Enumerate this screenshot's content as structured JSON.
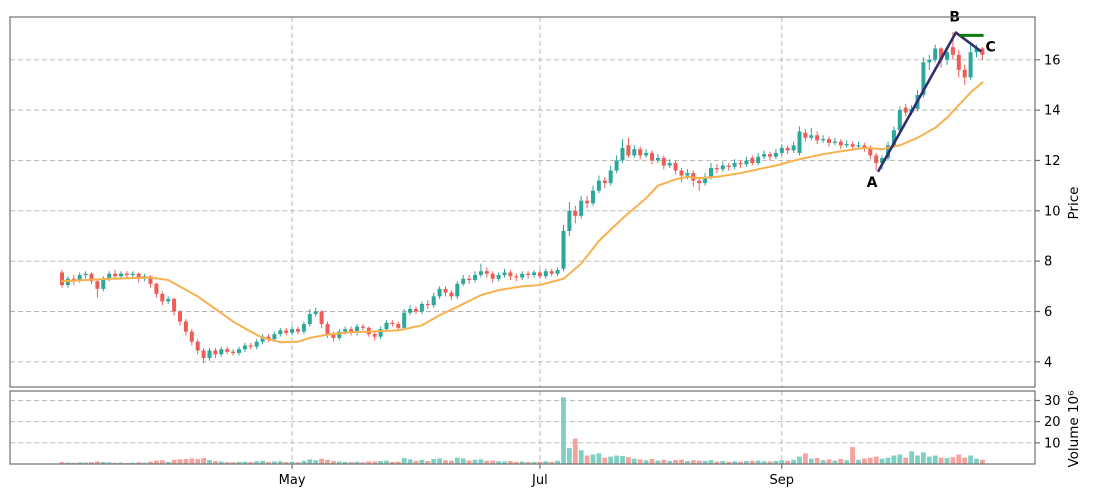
{
  "figure": {
    "kind": "candlestick-with-volume",
    "background": "#ffffff"
  },
  "chart_data": {
    "type": "candlestick",
    "title": "",
    "x_ticks": [
      {
        "index": 39,
        "label": "May"
      },
      {
        "index": 81,
        "label": "Jul"
      },
      {
        "index": 122,
        "label": "Sep"
      }
    ],
    "price": {
      "ylabel": "Price",
      "ylim": [
        3.0,
        17.7
      ],
      "yticks": [
        4,
        6,
        8,
        10,
        12,
        14,
        16
      ],
      "grid": true
    },
    "volume": {
      "ylabel_display": "Volume  10⁶",
      "unit": 1000000,
      "ylim": [
        0,
        34.5
      ],
      "yticks": [
        10,
        20,
        30
      ],
      "grid": true
    },
    "ohlc": {
      "open": [
        7.55,
        7.05,
        7.3,
        7.25,
        7.45,
        7.5,
        7.2,
        6.9,
        7.3,
        7.5,
        7.4,
        7.5,
        7.45,
        7.5,
        7.3,
        7.4,
        7.1,
        6.7,
        6.4,
        6.5,
        6.0,
        5.6,
        5.2,
        4.8,
        4.45,
        4.15,
        4.45,
        4.3,
        4.5,
        4.4,
        4.35,
        4.5,
        4.65,
        4.6,
        4.8,
        5.0,
        4.9,
        5.1,
        5.25,
        5.15,
        5.3,
        5.2,
        5.5,
        5.9,
        6.0,
        5.5,
        5.1,
        4.95,
        5.2,
        5.3,
        5.15,
        5.4,
        5.35,
        5.1,
        5.0,
        5.3,
        5.55,
        5.5,
        5.35,
        5.95,
        6.1,
        6.0,
        6.3,
        6.25,
        6.6,
        6.9,
        6.75,
        6.6,
        7.1,
        7.3,
        7.25,
        7.45,
        7.6,
        7.5,
        7.3,
        7.45,
        7.55,
        7.4,
        7.35,
        7.5,
        7.45,
        7.55,
        7.4,
        7.6,
        7.5,
        7.7,
        9.2,
        10.0,
        9.8,
        10.4,
        10.3,
        10.8,
        11.2,
        11.1,
        11.6,
        12.0,
        12.6,
        12.2,
        12.45,
        12.2,
        12.3,
        12.0,
        12.1,
        11.8,
        11.9,
        11.6,
        11.4,
        11.5,
        11.2,
        11.1,
        11.35,
        11.7,
        11.65,
        11.8,
        11.75,
        11.9,
        11.85,
        12.1,
        11.9,
        12.15,
        12.25,
        12.15,
        12.3,
        12.5,
        12.4,
        12.3,
        13.1,
        12.9,
        13.0,
        12.8,
        12.85,
        12.7,
        12.75,
        12.6,
        12.65,
        12.55,
        12.6,
        12.5,
        12.2,
        11.9,
        12.1,
        12.6,
        13.2,
        14.1,
        13.9,
        14.05,
        14.6,
        15.9,
        16.0,
        16.45,
        16.0,
        16.5,
        16.2,
        15.6,
        15.3,
        16.3,
        16.45
      ],
      "high": [
        7.65,
        7.4,
        7.45,
        7.55,
        7.6,
        7.55,
        7.3,
        7.4,
        7.6,
        7.65,
        7.6,
        7.6,
        7.6,
        7.55,
        7.5,
        7.45,
        7.15,
        6.8,
        6.6,
        6.55,
        6.05,
        5.7,
        5.3,
        4.9,
        4.55,
        4.55,
        4.55,
        4.6,
        4.6,
        4.5,
        4.6,
        4.75,
        4.75,
        4.9,
        5.1,
        5.1,
        5.2,
        5.35,
        5.35,
        5.4,
        5.4,
        5.6,
        6.1,
        6.15,
        6.05,
        5.6,
        5.2,
        5.3,
        5.4,
        5.4,
        5.5,
        5.5,
        5.4,
        5.2,
        5.4,
        5.65,
        5.65,
        5.6,
        6.1,
        6.25,
        6.2,
        6.4,
        6.45,
        6.75,
        7.0,
        7.0,
        6.85,
        7.2,
        7.45,
        7.45,
        7.6,
        7.9,
        7.75,
        7.6,
        7.55,
        7.7,
        7.65,
        7.5,
        7.6,
        7.6,
        7.65,
        7.65,
        7.7,
        7.7,
        7.75,
        9.45,
        10.35,
        10.2,
        10.6,
        10.6,
        11.0,
        11.4,
        11.35,
        11.8,
        12.2,
        12.85,
        12.9,
        12.6,
        12.55,
        12.45,
        12.4,
        12.25,
        12.2,
        12.05,
        12.0,
        11.7,
        11.65,
        11.6,
        11.35,
        11.5,
        11.9,
        11.85,
        11.95,
        11.9,
        12.05,
        12.0,
        12.15,
        12.2,
        12.3,
        12.4,
        12.35,
        12.45,
        12.65,
        12.6,
        12.75,
        13.35,
        13.25,
        13.3,
        13.15,
        13.0,
        12.95,
        12.9,
        12.85,
        12.8,
        12.75,
        12.75,
        12.7,
        12.6,
        12.3,
        12.2,
        12.75,
        13.35,
        14.15,
        14.25,
        14.2,
        14.8,
        16.1,
        16.2,
        16.6,
        16.5,
        16.5,
        17.1,
        16.4,
        15.8,
        16.6,
        16.6,
        16.5
      ],
      "low": [
        6.95,
        6.95,
        7.05,
        7.15,
        7.3,
        7.1,
        6.55,
        6.8,
        7.2,
        7.25,
        7.3,
        7.3,
        7.35,
        7.15,
        7.2,
        6.95,
        6.55,
        6.25,
        6.3,
        5.85,
        5.45,
        5.05,
        4.65,
        4.3,
        3.95,
        4.05,
        4.15,
        4.2,
        4.3,
        4.25,
        4.25,
        4.4,
        4.5,
        4.5,
        4.7,
        4.8,
        4.8,
        5.0,
        5.05,
        5.05,
        5.1,
        5.1,
        5.4,
        5.8,
        5.35,
        4.95,
        4.8,
        4.85,
        5.1,
        5.05,
        5.05,
        5.25,
        5.0,
        4.85,
        4.9,
        5.2,
        5.4,
        5.25,
        5.3,
        5.85,
        5.9,
        5.9,
        6.1,
        6.15,
        6.5,
        6.6,
        6.45,
        6.5,
        7.0,
        7.1,
        7.15,
        7.35,
        7.35,
        7.15,
        7.2,
        7.35,
        7.25,
        7.2,
        7.25,
        7.3,
        7.35,
        7.3,
        7.3,
        7.4,
        7.4,
        7.6,
        9.0,
        9.5,
        9.7,
        10.1,
        10.2,
        10.7,
        10.9,
        11.0,
        11.5,
        11.9,
        12.1,
        12.1,
        12.05,
        12.1,
        11.85,
        11.9,
        11.65,
        11.7,
        11.45,
        11.15,
        11.25,
        10.95,
        10.8,
        11.0,
        11.25,
        11.5,
        11.55,
        11.6,
        11.65,
        11.7,
        11.75,
        11.8,
        11.8,
        12.05,
        12.0,
        12.05,
        12.2,
        12.25,
        12.3,
        12.2,
        12.75,
        12.8,
        12.65,
        12.7,
        12.55,
        12.6,
        12.45,
        12.5,
        12.4,
        12.45,
        12.35,
        12.05,
        11.6,
        11.65,
        12.0,
        12.5,
        13.1,
        13.75,
        13.8,
        13.95,
        14.5,
        15.6,
        15.9,
        15.7,
        15.8,
        16.0,
        15.3,
        15.0,
        15.2,
        16.1,
        16.0
      ],
      "close": [
        7.05,
        7.3,
        7.2,
        7.45,
        7.5,
        7.2,
        6.9,
        7.3,
        7.5,
        7.4,
        7.5,
        7.45,
        7.5,
        7.3,
        7.4,
        7.1,
        6.7,
        6.4,
        6.5,
        6.0,
        5.6,
        5.2,
        4.8,
        4.45,
        4.15,
        4.45,
        4.3,
        4.5,
        4.4,
        4.35,
        4.5,
        4.65,
        4.6,
        4.8,
        5.0,
        4.9,
        5.1,
        5.25,
        5.15,
        5.3,
        5.2,
        5.5,
        5.9,
        6.0,
        5.5,
        5.1,
        4.95,
        5.2,
        5.3,
        5.15,
        5.4,
        5.35,
        5.1,
        5.0,
        5.3,
        5.55,
        5.5,
        5.35,
        5.95,
        6.1,
        6.0,
        6.3,
        6.25,
        6.6,
        6.9,
        6.75,
        6.6,
        7.1,
        7.3,
        7.25,
        7.45,
        7.6,
        7.5,
        7.3,
        7.45,
        7.55,
        7.4,
        7.35,
        7.5,
        7.45,
        7.55,
        7.4,
        7.6,
        7.5,
        7.65,
        9.2,
        10.0,
        9.8,
        10.4,
        10.3,
        10.8,
        11.2,
        11.1,
        11.6,
        12.0,
        12.5,
        12.2,
        12.45,
        12.2,
        12.3,
        12.0,
        12.1,
        11.8,
        11.9,
        11.6,
        11.4,
        11.5,
        11.2,
        11.1,
        11.35,
        11.7,
        11.65,
        11.8,
        11.75,
        11.9,
        11.85,
        12.0,
        11.9,
        12.15,
        12.25,
        12.15,
        12.3,
        12.5,
        12.4,
        12.6,
        13.15,
        12.9,
        13.0,
        12.8,
        12.85,
        12.7,
        12.75,
        12.6,
        12.65,
        12.55,
        12.6,
        12.5,
        12.2,
        11.9,
        12.1,
        12.6,
        13.2,
        14.0,
        13.9,
        14.05,
        14.6,
        15.9,
        16.0,
        16.45,
        16.0,
        16.3,
        16.2,
        15.6,
        15.3,
        16.3,
        16.45,
        16.2
      ]
    },
    "volume_values_millions": [
      0.9,
      0.7,
      0.6,
      0.8,
      0.7,
      0.9,
      1.2,
      1.0,
      0.8,
      0.6,
      0.7,
      0.5,
      0.6,
      0.8,
      0.6,
      1.1,
      1.6,
      1.8,
      1.0,
      2.0,
      2.2,
      2.4,
      2.6,
      2.3,
      2.8,
      1.9,
      1.4,
      1.2,
      0.9,
      0.8,
      1.0,
      1.1,
      0.9,
      1.3,
      1.5,
      1.0,
      1.2,
      1.3,
      0.9,
      1.1,
      0.8,
      1.5,
      2.2,
      1.8,
      2.5,
      2.0,
      1.4,
      1.2,
      1.0,
      0.9,
      1.1,
      0.8,
      1.3,
      1.2,
      1.4,
      1.6,
      1.0,
      1.1,
      2.8,
      2.2,
      1.5,
      2.0,
      1.4,
      2.4,
      2.6,
      1.8,
      1.6,
      3.0,
      2.6,
      1.7,
      2.0,
      2.2,
      1.5,
      1.6,
      1.3,
      1.2,
      1.4,
      1.0,
      1.2,
      0.9,
      1.0,
      1.1,
      1.3,
      1.0,
      1.5,
      31.5,
      7.5,
      12.0,
      6.5,
      4.0,
      4.5,
      5.0,
      3.0,
      3.5,
      4.0,
      3.8,
      3.2,
      2.5,
      2.2,
      1.8,
      2.4,
      1.6,
      2.0,
      1.5,
      1.9,
      2.1,
      1.4,
      1.8,
      1.6,
      1.5,
      1.8,
      1.2,
      1.4,
      1.0,
      1.3,
      1.1,
      1.4,
      1.5,
      1.6,
      1.3,
      1.2,
      1.4,
      1.8,
      1.5,
      2.0,
      3.5,
      5.0,
      2.5,
      2.8,
      1.8,
      2.2,
      1.6,
      2.4,
      1.8,
      8.0,
      2.0,
      2.6,
      3.0,
      3.5,
      2.5,
      3.0,
      4.0,
      4.5,
      3.0,
      6.0,
      4.0,
      5.5,
      3.5,
      4.0,
      3.0,
      2.8,
      3.2,
      4.5,
      3.0,
      4.0,
      2.5,
      2.0
    ],
    "moving_average": {
      "name": "moving-average",
      "points": [
        [
          0,
          7.2
        ],
        [
          8,
          7.3
        ],
        [
          15,
          7.35
        ],
        [
          18,
          7.25
        ],
        [
          23,
          6.6
        ],
        [
          26,
          6.1
        ],
        [
          29,
          5.6
        ],
        [
          32,
          5.2
        ],
        [
          34,
          4.95
        ],
        [
          37,
          4.78
        ],
        [
          40,
          4.8
        ],
        [
          42,
          4.95
        ],
        [
          45,
          5.08
        ],
        [
          49,
          5.18
        ],
        [
          52,
          5.2
        ],
        [
          57,
          5.25
        ],
        [
          61,
          5.45
        ],
        [
          64,
          5.85
        ],
        [
          68,
          6.3
        ],
        [
          71,
          6.65
        ],
        [
          74,
          6.85
        ],
        [
          78,
          7.0
        ],
        [
          81,
          7.05
        ],
        [
          85,
          7.3
        ],
        [
          88,
          7.9
        ],
        [
          91,
          8.8
        ],
        [
          95,
          9.7
        ],
        [
          99,
          10.5
        ],
        [
          101,
          11.0
        ],
        [
          104,
          11.25
        ],
        [
          106,
          11.35
        ],
        [
          108,
          11.3
        ],
        [
          111,
          11.35
        ],
        [
          115,
          11.5
        ],
        [
          118,
          11.65
        ],
        [
          121,
          11.8
        ],
        [
          125,
          12.05
        ],
        [
          129,
          12.25
        ],
        [
          133,
          12.4
        ],
        [
          136,
          12.5
        ],
        [
          139,
          12.45
        ],
        [
          142,
          12.6
        ],
        [
          145,
          12.9
        ],
        [
          148,
          13.3
        ],
        [
          150,
          13.7
        ],
        [
          152,
          14.2
        ],
        [
          154,
          14.7
        ],
        [
          156,
          15.1
        ]
      ]
    },
    "annotations": {
      "trend_polyline": {
        "points": [
          [
            138.3,
            11.55
          ],
          [
            151.5,
            17.08
          ],
          [
            155.8,
            16.33
          ]
        ]
      },
      "target_line": {
        "points": [
          [
            152.2,
            16.97
          ],
          [
            156.2,
            16.97
          ]
        ]
      },
      "labels": [
        {
          "text": "A",
          "index": 137.3,
          "price": 10.95
        },
        {
          "text": "B",
          "index": 151.3,
          "price": 17.52
        },
        {
          "text": "C",
          "index": 157.4,
          "price": 16.33
        }
      ]
    },
    "colors": {
      "up": "#2BA79B",
      "down": "#EF5C56",
      "volume_up": "#7FCFC5",
      "volume_down": "#F4A29C",
      "moving_average": "#F9B04E",
      "annotation_line": "#2E2E70",
      "target_line": "#0B7A0B",
      "grid": "#b3b3b3",
      "spine": "#707070",
      "tick_text": "#000000"
    }
  }
}
